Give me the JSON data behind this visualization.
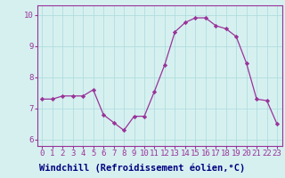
{
  "x": [
    0,
    1,
    2,
    3,
    4,
    5,
    6,
    7,
    8,
    9,
    10,
    11,
    12,
    13,
    14,
    15,
    16,
    17,
    18,
    19,
    20,
    21,
    22,
    23
  ],
  "y": [
    7.3,
    7.3,
    7.4,
    7.4,
    7.4,
    7.6,
    6.8,
    6.55,
    6.3,
    6.75,
    6.75,
    7.55,
    8.4,
    9.45,
    9.75,
    9.9,
    9.9,
    9.65,
    9.55,
    9.3,
    8.45,
    7.3,
    7.25,
    6.5
  ],
  "line_color": "#993399",
  "marker_color": "#993399",
  "bg_color": "#d6f0f0",
  "grid_color": "#b0dede",
  "xlabel": "Windchill (Refroidissement éolien,°C)",
  "xlabel_color": "#000080",
  "xlabel_bg": "#9999cc",
  "xlim": [
    -0.5,
    23.5
  ],
  "ylim": [
    5.8,
    10.3
  ],
  "yticks": [
    6,
    7,
    8,
    9,
    10
  ],
  "xticks": [
    0,
    1,
    2,
    3,
    4,
    5,
    6,
    7,
    8,
    9,
    10,
    11,
    12,
    13,
    14,
    15,
    16,
    17,
    18,
    19,
    20,
    21,
    22,
    23
  ],
  "tick_label_size": 6.5,
  "xlabel_fontsize": 7.5,
  "axis_color": "#993399"
}
